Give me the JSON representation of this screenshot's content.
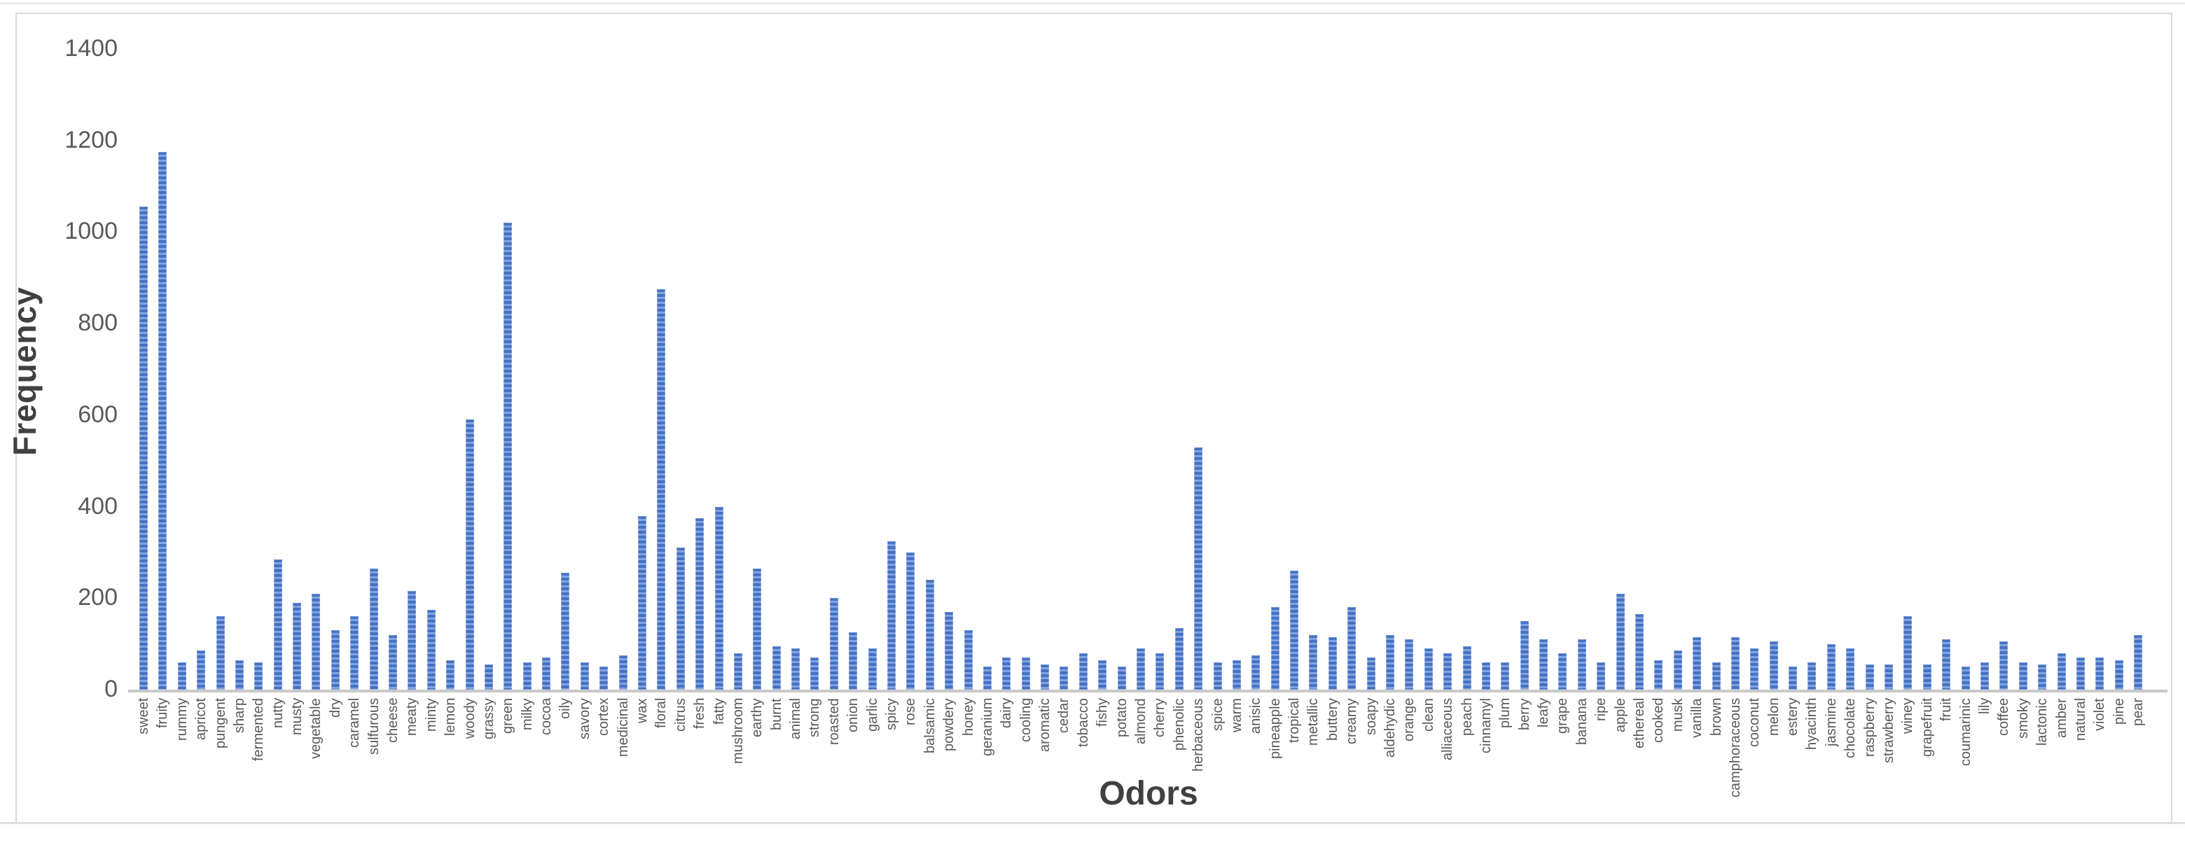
{
  "chart_data": {
    "type": "bar",
    "title": "",
    "xlabel": "Odors",
    "ylabel": "Frequency",
    "ylim": [
      0,
      1400
    ],
    "y_ticks": [
      0,
      200,
      400,
      600,
      800,
      1000,
      1200,
      1400
    ],
    "grid": false,
    "legend": false,
    "bar_color": "#4472C4",
    "bar_stripe_color": "#84A2DE",
    "axis_text_color": "#595959",
    "axis_title_color": "#404040",
    "categories": [
      "sweet",
      "fruity",
      "rummy",
      "apricot",
      "pungent",
      "sharp",
      "fermented",
      "nutty",
      "musty",
      "vegetable",
      "dry",
      "caramel",
      "sulfurous",
      "cheese",
      "meaty",
      "minty",
      "lemon",
      "woody",
      "grassy",
      "green",
      "milky",
      "cocoa",
      "oily",
      "savory",
      "cortex",
      "medicinal",
      "wax",
      "floral",
      "citrus",
      "fresh",
      "fatty",
      "mushroom",
      "earthy",
      "burnt",
      "animal",
      "strong",
      "roasted",
      "onion",
      "garlic",
      "spicy",
      "rose",
      "balsamic",
      "powdery",
      "honey",
      "geranium",
      "dairy",
      "cooling",
      "aromatic",
      "cedar",
      "tobacco",
      "fishy",
      "potato",
      "almond",
      "cherry",
      "phenolic",
      "herbaceous",
      "spice",
      "warm",
      "anisic",
      "pineapple",
      "tropical",
      "metallic",
      "buttery",
      "creamy",
      "soapy",
      "aldehydic",
      "orange",
      "clean",
      "alliaceous",
      "peach",
      "cinnamyl",
      "plum",
      "berry",
      "leafy",
      "grape",
      "banana",
      "ripe",
      "apple",
      "ethereal",
      "cooked",
      "musk",
      "vanilla",
      "brown",
      "camphoraceous",
      "coconut",
      "melon",
      "estery",
      "hyacinth",
      "jasmine",
      "chocolate",
      "raspberry",
      "strawberry",
      "winey",
      "grapefruit",
      "fruit",
      "coumarinic",
      "lily",
      "coffee",
      "smoky",
      "lactonic",
      "amber",
      "natural",
      "violet",
      "pine",
      "pear"
    ],
    "values": [
      1055,
      1175,
      60,
      85,
      160,
      65,
      60,
      285,
      190,
      210,
      130,
      160,
      265,
      120,
      215,
      175,
      65,
      590,
      55,
      1020,
      60,
      70,
      255,
      60,
      50,
      75,
      380,
      875,
      310,
      375,
      400,
      80,
      265,
      95,
      90,
      70,
      200,
      125,
      90,
      325,
      300,
      240,
      170,
      130,
      50,
      70,
      70,
      55,
      50,
      80,
      65,
      50,
      90,
      80,
      135,
      530,
      60,
      65,
      75,
      180,
      260,
      120,
      115,
      180,
      70,
      120,
      110,
      90,
      80,
      95,
      60,
      60,
      150,
      110,
      80,
      110,
      60,
      210,
      165,
      65,
      85,
      115,
      60,
      115,
      90,
      105,
      50,
      60,
      100,
      90,
      55,
      55,
      160,
      55,
      110,
      50,
      60,
      105,
      60,
      55,
      80,
      70,
      70,
      65,
      120
    ]
  }
}
